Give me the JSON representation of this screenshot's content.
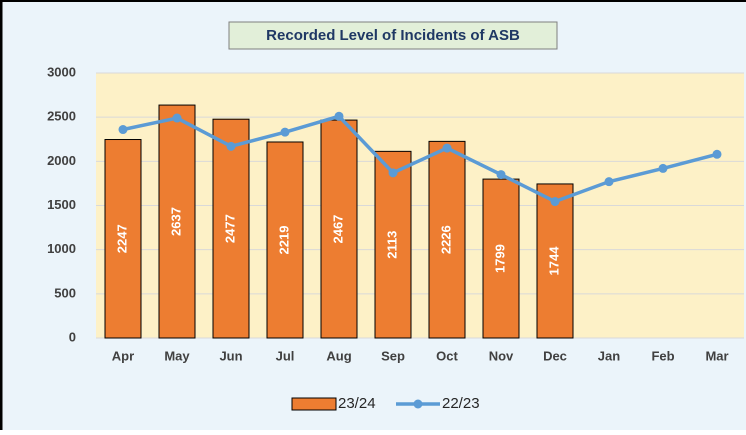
{
  "chart_data": {
    "type": "bar",
    "title": "Recorded Level of Incidents of ASB",
    "categories": [
      "Apr",
      "May",
      "Jun",
      "Jul",
      "Aug",
      "Sep",
      "Oct",
      "Nov",
      "Dec",
      "Jan",
      "Feb",
      "Mar"
    ],
    "series": [
      {
        "name": "23/24",
        "type": "bar",
        "color": "#ed7d31",
        "values": [
          2247,
          2637,
          2477,
          2219,
          2467,
          2113,
          2226,
          1799,
          1744,
          null,
          null,
          null
        ]
      },
      {
        "name": "22/23",
        "type": "line",
        "color": "#5b9bd5",
        "values": [
          2360,
          2490,
          2170,
          2330,
          2510,
          1870,
          2150,
          1850,
          1545,
          1770,
          1920,
          2080
        ]
      }
    ],
    "ylim": [
      0,
      3000
    ],
    "yticks": [
      0,
      500,
      1000,
      1500,
      2000,
      2500,
      3000
    ],
    "grid": true,
    "legend": "bottom"
  }
}
